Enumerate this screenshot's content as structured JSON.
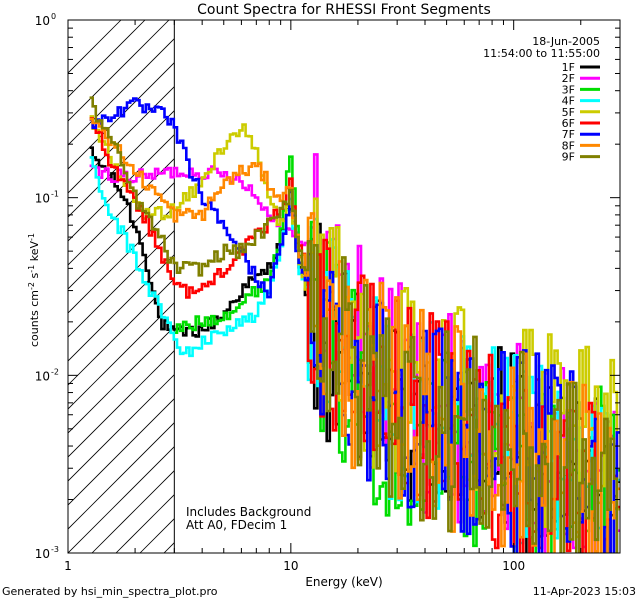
{
  "chart_data": {
    "type": "line",
    "title": "Count Spectra for RHESSI Front Segments",
    "xlabel": "Energy (keV)",
    "ylabel_main": "counts cm",
    "ylabel_exp1": "-2",
    "ylabel_mid1": " s",
    "ylabel_exp2": "-1",
    "ylabel_mid2": " keV",
    "ylabel_exp3": "-1",
    "xscale": "log",
    "yscale": "log",
    "xlim": [
      1,
      300
    ],
    "ylim": [
      0.001,
      1
    ],
    "x_ticks": [
      {
        "value": 1,
        "label": "1"
      },
      {
        "value": 10,
        "label": "10"
      },
      {
        "value": 100,
        "label": "100"
      }
    ],
    "y_ticks": [
      {
        "value": 0.001,
        "base": "10",
        "exp": "-3"
      },
      {
        "value": 0.01,
        "base": "10",
        "exp": "-2"
      },
      {
        "value": 0.1,
        "base": "10",
        "exp": "-1"
      },
      {
        "value": 1,
        "base": "10",
        "exp": "0"
      }
    ],
    "hatched_region": {
      "x_from": 1,
      "x_to": 3
    },
    "date": "18-Jun-2005",
    "time_range": "11:54:00 to 11:55:00",
    "annotations": [
      "Includes Background",
      "Att A0, FDecim 1"
    ],
    "series": [
      {
        "name": "1F",
        "color": "#000000",
        "offset": 0.0
      },
      {
        "name": "2F",
        "color": "#ff00ff",
        "offset": 0.15
      },
      {
        "name": "3F",
        "color": "#00dd00",
        "offset": -0.08
      },
      {
        "name": "4F",
        "color": "#00ffff",
        "offset": -0.12
      },
      {
        "name": "5F",
        "color": "#cccc00",
        "offset": 0.1
      },
      {
        "name": "6F",
        "color": "#ff0000",
        "offset": 0.02
      },
      {
        "name": "7F",
        "color": "#0000ff",
        "offset": 0.05
      },
      {
        "name": "8F",
        "color": "#ff8800",
        "offset": 0.04
      },
      {
        "name": "9F",
        "color": "#808000",
        "offset": -0.03
      }
    ],
    "series_profiles": {
      "1F": [
        [
          1.25,
          0.18
        ],
        [
          1.5,
          0.14
        ],
        [
          1.8,
          0.1
        ],
        [
          2.2,
          0.05
        ],
        [
          2.6,
          0.02
        ],
        [
          3.0,
          0.017
        ],
        [
          4,
          0.018
        ],
        [
          5,
          0.022
        ],
        [
          6,
          0.03
        ],
        [
          7,
          0.035
        ],
        [
          8,
          0.04
        ],
        [
          9,
          0.06
        ],
        [
          10,
          0.09
        ],
        [
          11,
          0.04
        ],
        [
          13,
          0.02
        ],
        [
          16,
          0.012
        ],
        [
          20,
          0.008
        ],
        [
          30,
          0.006
        ],
        [
          50,
          0.005
        ],
        [
          80,
          0.004
        ],
        [
          120,
          0.003
        ],
        [
          200,
          0.0025
        ],
        [
          280,
          0.002
        ]
      ],
      "2F": [
        [
          1.25,
          0.14
        ],
        [
          2,
          0.13
        ],
        [
          3,
          0.14
        ],
        [
          4,
          0.14
        ],
        [
          6,
          0.13
        ],
        [
          8,
          0.08
        ],
        [
          10,
          0.07
        ],
        [
          12,
          0.05
        ],
        [
          14,
          0.04
        ],
        [
          18,
          0.02
        ],
        [
          25,
          0.01
        ],
        [
          40,
          0.006
        ],
        [
          80,
          0.004
        ],
        [
          150,
          0.003
        ],
        [
          280,
          0.002
        ]
      ],
      "3F": [
        [
          3,
          0.018
        ],
        [
          4,
          0.02
        ],
        [
          5,
          0.022
        ],
        [
          6,
          0.025
        ],
        [
          7,
          0.03
        ],
        [
          8,
          0.035
        ],
        [
          9,
          0.06
        ],
        [
          10,
          0.18
        ],
        [
          11,
          0.05
        ],
        [
          13,
          0.02
        ],
        [
          18,
          0.01
        ],
        [
          30,
          0.006
        ],
        [
          60,
          0.004
        ],
        [
          120,
          0.003
        ],
        [
          280,
          0.0022
        ]
      ],
      "4F": [
        [
          1.25,
          0.2
        ],
        [
          1.4,
          0.1
        ],
        [
          1.8,
          0.06
        ],
        [
          2.2,
          0.035
        ],
        [
          2.8,
          0.02
        ],
        [
          3.2,
          0.013
        ],
        [
          4,
          0.015
        ],
        [
          5,
          0.018
        ],
        [
          6,
          0.02
        ],
        [
          7,
          0.022
        ],
        [
          8,
          0.03
        ],
        [
          9,
          0.05
        ],
        [
          10,
          0.1
        ],
        [
          11,
          0.04
        ],
        [
          14,
          0.02
        ],
        [
          20,
          0.01
        ],
        [
          40,
          0.006
        ],
        [
          80,
          0.004
        ],
        [
          150,
          0.003
        ],
        [
          280,
          0.002
        ]
      ],
      "5F": [
        [
          1.25,
          0.3
        ],
        [
          1.6,
          0.15
        ],
        [
          2.2,
          0.08
        ],
        [
          3,
          0.085
        ],
        [
          4,
          0.12
        ],
        [
          5,
          0.2
        ],
        [
          6,
          0.25
        ],
        [
          7,
          0.18
        ],
        [
          8,
          0.1
        ],
        [
          9,
          0.07
        ],
        [
          10,
          0.09
        ],
        [
          11,
          0.04
        ],
        [
          14,
          0.02
        ],
        [
          20,
          0.012
        ],
        [
          40,
          0.008
        ],
        [
          80,
          0.006
        ],
        [
          150,
          0.004
        ],
        [
          280,
          0.003
        ]
      ],
      "6F": [
        [
          1.25,
          0.3
        ],
        [
          1.6,
          0.15
        ],
        [
          2,
          0.1
        ],
        [
          2.6,
          0.05
        ],
        [
          3.2,
          0.03
        ],
        [
          4,
          0.03
        ],
        [
          5,
          0.04
        ],
        [
          6,
          0.05
        ],
        [
          7,
          0.06
        ],
        [
          8,
          0.07
        ],
        [
          9,
          0.09
        ],
        [
          10,
          0.12
        ],
        [
          11,
          0.05
        ],
        [
          14,
          0.02
        ],
        [
          20,
          0.01
        ],
        [
          40,
          0.006
        ],
        [
          80,
          0.004
        ],
        [
          150,
          0.003
        ],
        [
          280,
          0.002
        ]
      ],
      "7F": [
        [
          1.25,
          0.25
        ],
        [
          1.6,
          0.3
        ],
        [
          2,
          0.33
        ],
        [
          2.6,
          0.3
        ],
        [
          3,
          0.25
        ],
        [
          3.5,
          0.15
        ],
        [
          4,
          0.1
        ],
        [
          5,
          0.07
        ],
        [
          6,
          0.05
        ],
        [
          7,
          0.035
        ],
        [
          8,
          0.03
        ],
        [
          9,
          0.05
        ],
        [
          10,
          0.1
        ],
        [
          11,
          0.04
        ],
        [
          14,
          0.02
        ],
        [
          20,
          0.01
        ],
        [
          40,
          0.006
        ],
        [
          80,
          0.004
        ],
        [
          150,
          0.003
        ],
        [
          280,
          0.002
        ]
      ],
      "8F": [
        [
          1.25,
          0.3
        ],
        [
          1.6,
          0.2
        ],
        [
          2,
          0.14
        ],
        [
          2.6,
          0.1
        ],
        [
          3,
          0.08
        ],
        [
          4,
          0.08
        ],
        [
          5,
          0.12
        ],
        [
          6,
          0.14
        ],
        [
          7,
          0.15
        ],
        [
          8,
          0.12
        ],
        [
          9,
          0.1
        ],
        [
          10,
          0.11
        ],
        [
          11,
          0.05
        ],
        [
          14,
          0.02
        ],
        [
          20,
          0.01
        ],
        [
          40,
          0.006
        ],
        [
          80,
          0.004
        ],
        [
          150,
          0.003
        ],
        [
          280,
          0.002
        ]
      ],
      "9F": [
        [
          1.25,
          0.35
        ],
        [
          1.6,
          0.2
        ],
        [
          2,
          0.1
        ],
        [
          2.6,
          0.06
        ],
        [
          3,
          0.04
        ],
        [
          4,
          0.04
        ],
        [
          5,
          0.05
        ],
        [
          6,
          0.05
        ],
        [
          7,
          0.06
        ],
        [
          8,
          0.07
        ],
        [
          9,
          0.08
        ],
        [
          10,
          0.11
        ],
        [
          11,
          0.05
        ],
        [
          14,
          0.02
        ],
        [
          20,
          0.01
        ],
        [
          40,
          0.006
        ],
        [
          80,
          0.004
        ],
        [
          150,
          0.003
        ],
        [
          280,
          0.002
        ]
      ]
    }
  },
  "footer": {
    "left": "Generated by hsi_min_spectra_plot.pro",
    "right": "11-Apr-2023 15:03"
  }
}
